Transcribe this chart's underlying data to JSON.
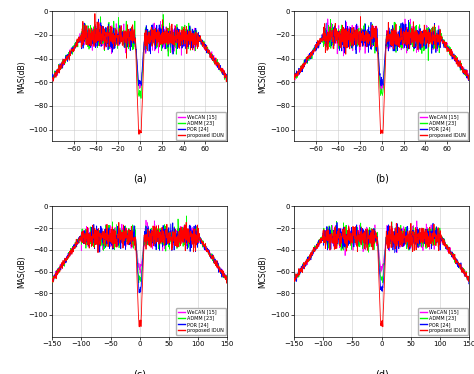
{
  "subplots": [
    {
      "label": "(a)",
      "ylabel": "MAS(dB)",
      "xlim": [
        -80,
        80
      ],
      "ylim": [
        -110,
        0
      ],
      "yticks": [
        -100,
        -80,
        -60,
        -40,
        -20,
        0
      ],
      "xticks": [
        -60,
        -40,
        -20,
        0,
        20,
        40,
        60
      ]
    },
    {
      "label": "(b)",
      "ylabel": "MCS(dB)",
      "xlim": [
        -80,
        80
      ],
      "ylim": [
        -110,
        0
      ],
      "yticks": [
        -100,
        -80,
        -60,
        -40,
        -20,
        0
      ],
      "xticks": [
        -60,
        -40,
        -20,
        0,
        20,
        40,
        60
      ]
    },
    {
      "label": "(c)",
      "ylabel": "MAS(dB)",
      "xlim": [
        -150,
        150
      ],
      "ylim": [
        -120,
        0
      ],
      "yticks": [
        -100,
        -80,
        -60,
        -40,
        -20,
        0
      ],
      "xticks": [
        -150,
        -100,
        -50,
        0,
        50,
        100,
        150
      ]
    },
    {
      "label": "(d)",
      "ylabel": "MCS(dB)",
      "xlim": [
        -150,
        150
      ],
      "ylim": [
        -120,
        0
      ],
      "yticks": [
        -100,
        -80,
        -60,
        -40,
        -20,
        0
      ],
      "xticks": [
        -150,
        -100,
        -50,
        0,
        50,
        100,
        150
      ]
    }
  ],
  "legend_entries": [
    "WeCAN [15]",
    "ADMM [23]",
    "POR [24]",
    "proposed IDUN"
  ],
  "legend_colors": [
    "magenta",
    "lime",
    "blue",
    "red"
  ],
  "methods": [
    "wecan",
    "admm",
    "por",
    "proposed"
  ],
  "ab_base": -22,
  "ab_noise": 5,
  "ab_edge_drop": -35,
  "ab_depths": [
    -63,
    -70,
    -60,
    -102
  ],
  "cd_base": -28,
  "cd_noise": 5,
  "cd_edge_drop": -40,
  "cd_depths": [
    -57,
    -67,
    -76,
    -108
  ]
}
